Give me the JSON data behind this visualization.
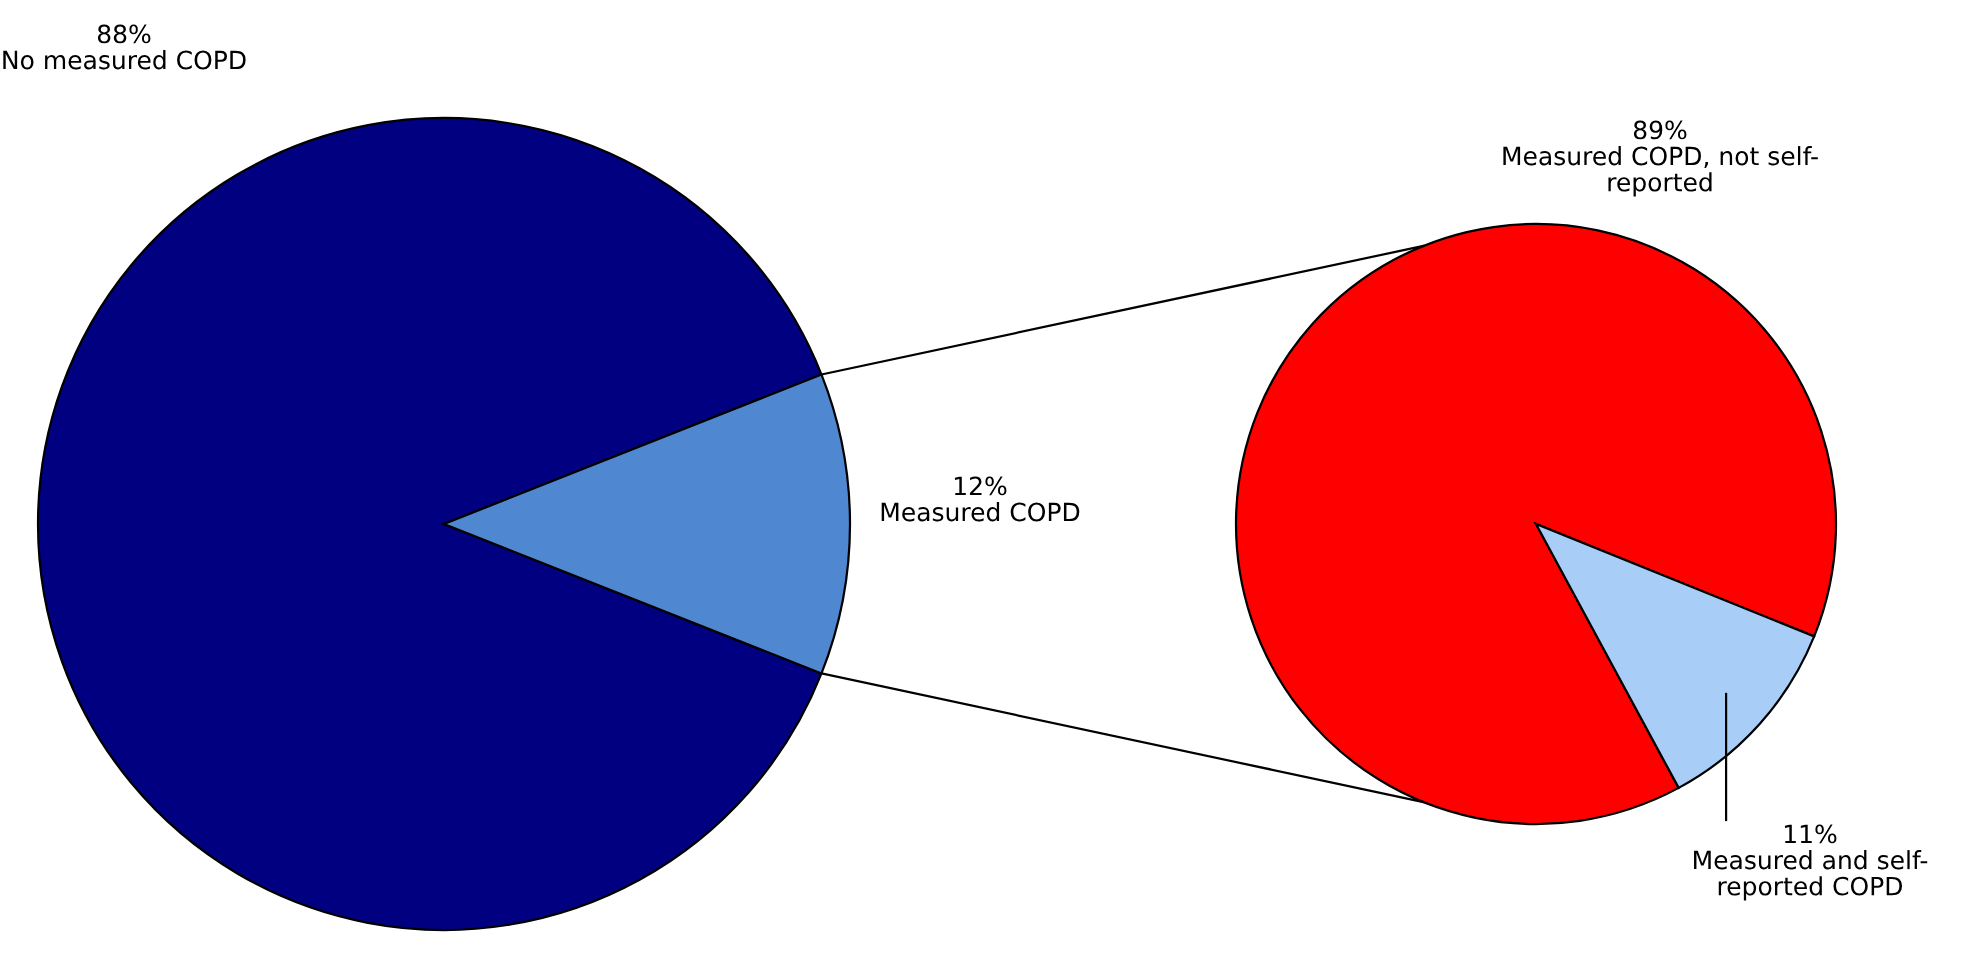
{
  "chart_data": [
    {
      "type": "pie",
      "categories": [
        "No measured COPD",
        "Measured COPD"
      ],
      "values": [
        88,
        12
      ],
      "value_labels": [
        "88%",
        "12%"
      ],
      "colors": [
        "#000080",
        "#4f88d0"
      ]
    },
    {
      "type": "pie",
      "categories": [
        "Measured COPD, not self-reported",
        "Measured and self-reported COPD"
      ],
      "values": [
        89,
        11
      ],
      "value_labels": [
        "89%",
        "11%"
      ],
      "colors": [
        "#ff0000",
        "#a8cdf6"
      ]
    }
  ]
}
